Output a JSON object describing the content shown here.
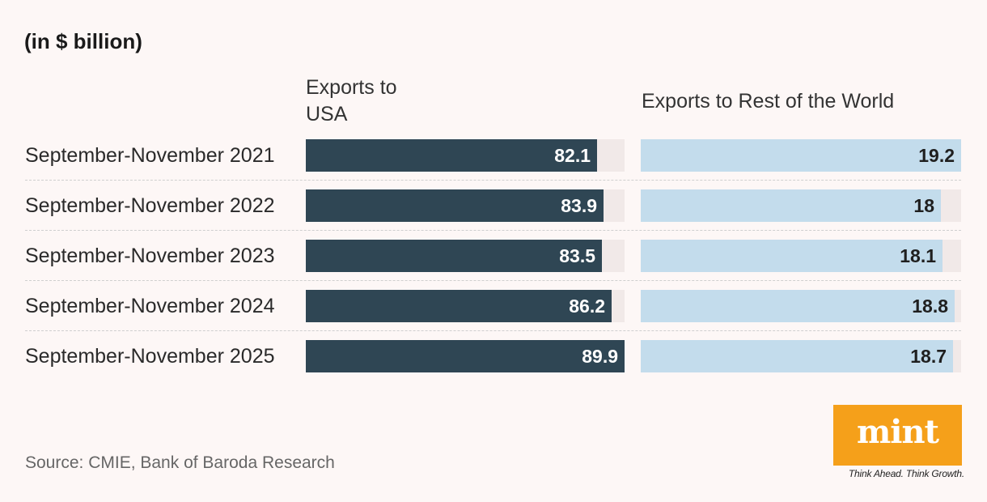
{
  "unit_label": "(in $ billion)",
  "chart_data": {
    "type": "bar",
    "orientation": "horizontal",
    "categories": [
      "September-November 2021",
      "September-November 2022",
      "September-November 2023",
      "September-November 2024",
      "September-November 2025"
    ],
    "series": [
      {
        "name": "Exports to USA",
        "values": [
          82.1,
          83.9,
          83.5,
          86.2,
          89.9
        ],
        "color": "#2f4654",
        "max": 89.9
      },
      {
        "name": "Exports to Rest of the World",
        "values": [
          19.2,
          18.0,
          18.1,
          18.8,
          18.7
        ],
        "value_labels": [
          "19.2",
          "18",
          "18.1",
          "18.8",
          "18.7"
        ],
        "color": "#c3dcec",
        "max": 19.2
      }
    ],
    "column_titles": [
      "Exports to USA",
      "Exports to Rest of the World"
    ],
    "usa_value_labels": [
      "82.1",
      "83.9",
      "83.5",
      "86.2",
      "89.9"
    ]
  },
  "source": "Source: CMIE, Bank of Baroda Research",
  "logo": {
    "text": "mint",
    "tagline": "Think Ahead. Think Growth.",
    "color": "#f5a01a"
  }
}
